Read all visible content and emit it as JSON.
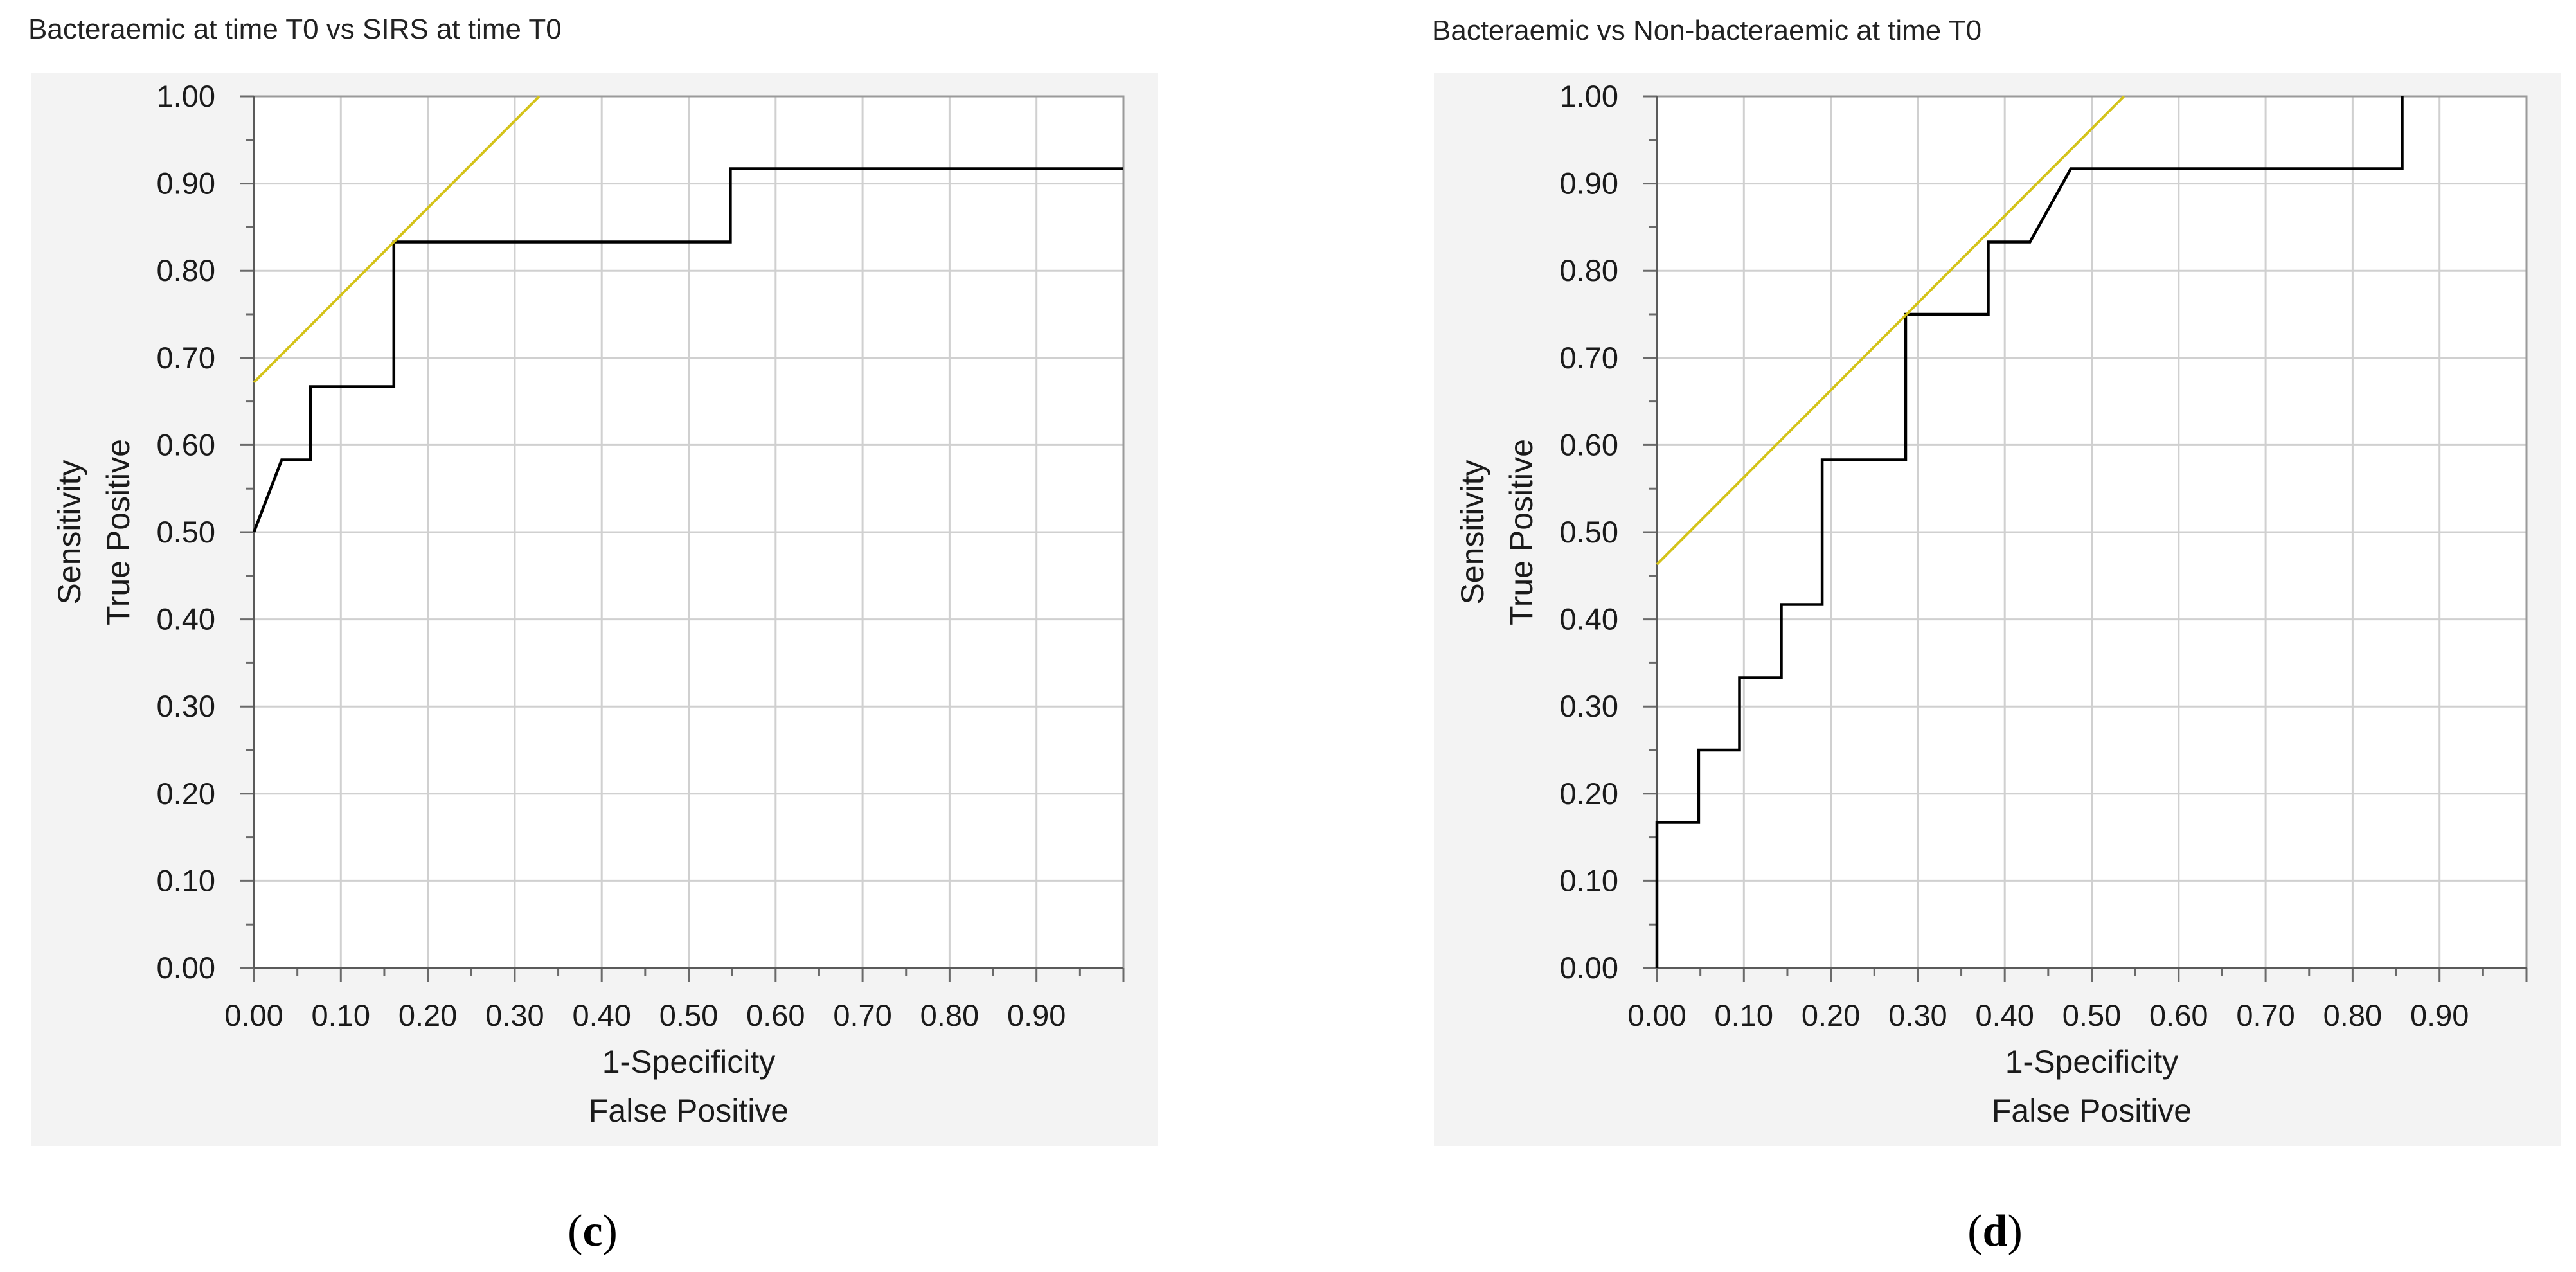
{
  "panels": [
    {
      "title": "Bacteraemic at time T0 vs SIRS at time T0",
      "caption": "(c)"
    },
    {
      "title": "Bacteraemic vs Non-bacteraemic at time T0",
      "caption": "(d)"
    }
  ],
  "chart_data": [
    {
      "type": "line",
      "title": "Bacteraemic at time T0 vs SIRS at time T0",
      "caption": "(c)",
      "xlabel": [
        "1-Specificity",
        "False Positive"
      ],
      "ylabel": [
        "Sensitivity",
        "True Positive"
      ],
      "xlim": [
        0,
        1
      ],
      "ylim": [
        0,
        1
      ],
      "xticks": [
        "0.00",
        "0.10",
        "0.20",
        "0.30",
        "0.40",
        "0.50",
        "0.60",
        "0.70",
        "0.80",
        "0.90"
      ],
      "yticks": [
        "0.00",
        "0.10",
        "0.20",
        "0.30",
        "0.40",
        "0.50",
        "0.60",
        "0.70",
        "0.80",
        "0.90",
        "1.00"
      ],
      "grid": true,
      "series": [
        {
          "color": "#000000",
          "x": [
            0.0,
            0.032,
            0.065,
            0.065,
            0.161,
            0.161,
            0.548,
            0.548,
            1.0
          ],
          "y": [
            0.5,
            0.583,
            0.583,
            0.667,
            0.667,
            0.833,
            0.833,
            0.917,
            0.917
          ]
        },
        {
          "color": "#d4c31a",
          "x": [
            0.0,
            0.328
          ],
          "y": [
            0.672,
            1.0
          ]
        }
      ]
    },
    {
      "type": "line",
      "title": "Bacteraemic vs Non-bacteraemic at time T0",
      "caption": "(d)",
      "xlabel": [
        "1-Specificity",
        "False Positive"
      ],
      "ylabel": [
        "Sensitivity",
        "True Positive"
      ],
      "xlim": [
        0,
        1
      ],
      "ylim": [
        0,
        1
      ],
      "xticks": [
        "0.00",
        "0.10",
        "0.20",
        "0.30",
        "0.40",
        "0.50",
        "0.60",
        "0.70",
        "0.80",
        "0.90"
      ],
      "yticks": [
        "0.00",
        "0.10",
        "0.20",
        "0.30",
        "0.40",
        "0.50",
        "0.60",
        "0.70",
        "0.80",
        "0.90",
        "1.00"
      ],
      "grid": true,
      "series": [
        {
          "color": "#000000",
          "x": [
            0.0,
            0.0,
            0.048,
            0.048,
            0.095,
            0.095,
            0.143,
            0.143,
            0.19,
            0.19,
            0.286,
            0.286,
            0.381,
            0.381,
            0.429,
            0.476,
            0.857,
            0.857
          ],
          "y": [
            0.0,
            0.167,
            0.167,
            0.25,
            0.25,
            0.333,
            0.333,
            0.417,
            0.417,
            0.583,
            0.583,
            0.75,
            0.75,
            0.833,
            0.833,
            0.917,
            0.917,
            1.0
          ]
        },
        {
          "color": "#d4c31a",
          "x": [
            0.0,
            0.537
          ],
          "y": [
            0.463,
            1.0
          ]
        }
      ]
    }
  ]
}
